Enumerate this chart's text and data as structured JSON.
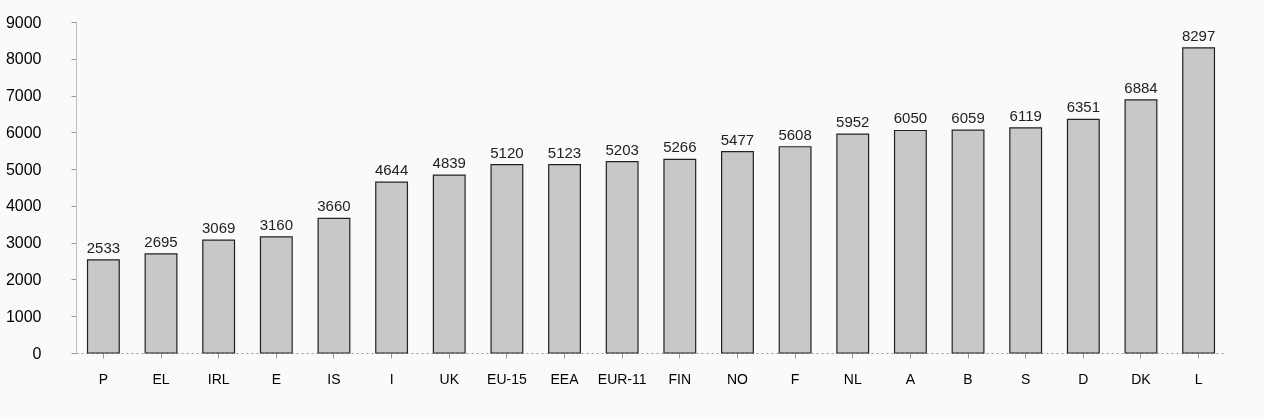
{
  "chart_data": {
    "type": "bar",
    "categories": [
      "P",
      "EL",
      "IRL",
      "E",
      "IS",
      "I",
      "UK",
      "EU-15",
      "EEA",
      "EUR-11",
      "FIN",
      "NO",
      "F",
      "NL",
      "A",
      "B",
      "S",
      "D",
      "DK",
      "L"
    ],
    "values": [
      2533,
      2695,
      3069,
      3160,
      3660,
      4644,
      4839,
      5120,
      5123,
      5203,
      5266,
      5477,
      5608,
      5952,
      6050,
      6059,
      6119,
      6351,
      6884,
      8297
    ],
    "color": "#c8c8c8",
    "ylim": [
      0,
      9000
    ],
    "yticks": [
      0,
      1000,
      2000,
      3000,
      4000,
      5000,
      6000,
      7000,
      8000,
      9000
    ],
    "data_labels": true
  }
}
